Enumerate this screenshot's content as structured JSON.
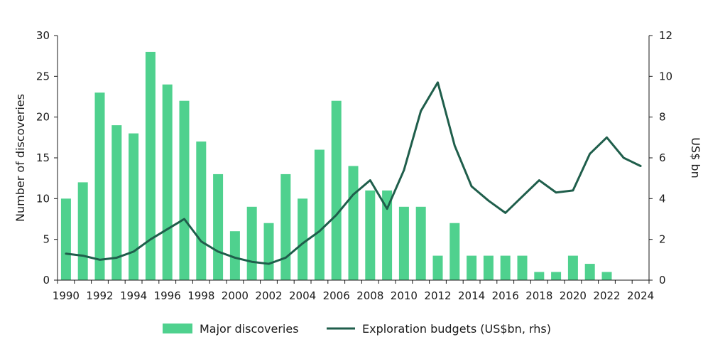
{
  "chart_data": {
    "type": "bar+line",
    "years": [
      1990,
      1991,
      1992,
      1993,
      1994,
      1995,
      1996,
      1997,
      1998,
      1999,
      2000,
      2001,
      2002,
      2003,
      2004,
      2005,
      2006,
      2007,
      2008,
      2009,
      2010,
      2011,
      2012,
      2013,
      2014,
      2015,
      2016,
      2017,
      2018,
      2019,
      2020,
      2021,
      2022,
      2023,
      2024
    ],
    "series": [
      {
        "name": "Major discoveries",
        "type": "bar",
        "axis": "left",
        "color": "#4fd18e",
        "values": [
          10,
          12,
          23,
          19,
          18,
          28,
          24,
          22,
          17,
          13,
          6,
          9,
          7,
          13,
          10,
          16,
          22,
          14,
          11,
          11,
          9,
          9,
          3,
          7,
          3,
          3,
          3,
          3,
          1,
          1,
          3,
          2,
          1,
          null,
          null
        ]
      },
      {
        "name": "Exploration budgets (US$bn, rhs)",
        "type": "line",
        "axis": "right",
        "color": "#1f5e4b",
        "values": [
          1.3,
          1.2,
          1.0,
          1.1,
          1.4,
          2.0,
          2.5,
          3.0,
          1.9,
          1.4,
          1.1,
          0.9,
          0.8,
          1.1,
          1.8,
          2.4,
          3.2,
          4.2,
          4.9,
          3.5,
          5.4,
          8.3,
          9.7,
          6.6,
          4.6,
          3.9,
          3.3,
          4.1,
          4.9,
          4.3,
          4.4,
          6.2,
          7.0,
          6.0,
          5.6
        ]
      }
    ],
    "x_tick_labels": [
      "1990",
      "1992",
      "1994",
      "1996",
      "1998",
      "2000",
      "2002",
      "2004",
      "2006",
      "2008",
      "2010",
      "2012",
      "2014",
      "2016",
      "2018",
      "2020",
      "2022",
      "2024"
    ],
    "y_left": {
      "label": "Number of discoveries",
      "ticks": [
        0,
        5,
        10,
        15,
        20,
        25,
        30
      ],
      "ylim": [
        0,
        30
      ]
    },
    "y_right": {
      "label": "US$ bn",
      "ticks": [
        0,
        2,
        4,
        6,
        8,
        10,
        12
      ],
      "ylim": [
        0,
        12
      ]
    },
    "legend": {
      "position": "bottom",
      "items": [
        "Major discoveries",
        "Exploration budgets (US$bn, rhs)"
      ]
    }
  }
}
